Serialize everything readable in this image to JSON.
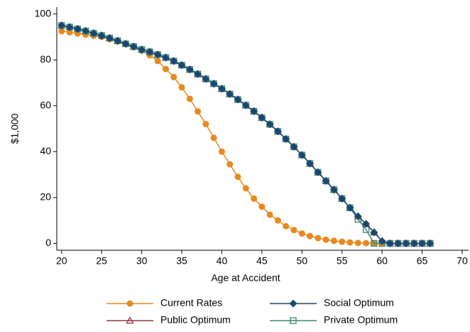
{
  "chart_data": {
    "type": "line",
    "x_label": "Age at Accident",
    "y_label": "$1,000",
    "x": [
      20,
      21,
      22,
      23,
      24,
      25,
      26,
      27,
      28,
      29,
      30,
      31,
      32,
      33,
      34,
      35,
      36,
      37,
      38,
      39,
      40,
      41,
      42,
      43,
      44,
      45,
      46,
      47,
      48,
      49,
      50,
      51,
      52,
      53,
      54,
      55,
      56,
      57,
      58,
      59,
      60,
      61,
      62,
      63,
      64,
      65,
      66
    ],
    "series": [
      {
        "name": "Current Rates",
        "color": "#e8891c",
        "marker": "circle",
        "values": [
          92.5,
          92,
          91.5,
          91,
          90.5,
          90,
          89,
          88,
          87,
          85.5,
          84,
          82,
          79.5,
          76,
          72.5,
          68,
          63,
          57.5,
          52,
          46,
          40,
          34.5,
          29,
          24,
          19.5,
          16,
          12.5,
          10,
          7.5,
          5.8,
          4.3,
          3.2,
          2.3,
          1.6,
          1.1,
          0.7,
          0.4,
          0.2,
          0.1,
          0,
          0,
          0,
          0,
          0,
          0,
          0,
          0
        ]
      },
      {
        "name": "Social Optimum",
        "color": "#1a476f",
        "marker": "diamond",
        "values": [
          95,
          94.3,
          93.5,
          92.6,
          91.6,
          90.6,
          89.5,
          88.3,
          87,
          85.8,
          84.5,
          83.5,
          82.3,
          81,
          79.5,
          77.7,
          75.8,
          73.8,
          71.7,
          69.6,
          67.4,
          65.1,
          62.7,
          60.2,
          57.6,
          54.8,
          51.9,
          48.8,
          45.5,
          42.1,
          38.5,
          34.8,
          31,
          27.2,
          23.4,
          19.5,
          15.5,
          11.8,
          8.5,
          4.8,
          1,
          0,
          0,
          0,
          0,
          0,
          0
        ]
      },
      {
        "name": "Public Optimum",
        "color": "#90353b",
        "marker": "triangle-open",
        "values": [
          95,
          94.3,
          93.5,
          92.6,
          91.6,
          90.6,
          89.5,
          88.3,
          87,
          85.8,
          84.5,
          83.5,
          82.3,
          81,
          79.5,
          77.7,
          75.8,
          73.8,
          71.7,
          69.6,
          67.4,
          65.1,
          62.7,
          60.2,
          57.6,
          54.8,
          51.9,
          48.8,
          45.5,
          42.1,
          38.5,
          34.8,
          31,
          27.2,
          23.4,
          19.5,
          15.5,
          11.8,
          8.5,
          4.8,
          1,
          0,
          0,
          0,
          0,
          0,
          0
        ]
      },
      {
        "name": "Private Optimum",
        "color": "#3c8574",
        "marker": "square-open",
        "values": [
          95,
          94.3,
          93.5,
          92.6,
          91.6,
          90.6,
          89.5,
          88.3,
          87,
          85.8,
          84.5,
          83.5,
          82.3,
          81,
          79.5,
          77.7,
          75.8,
          73.8,
          71.7,
          69.6,
          67.4,
          65.1,
          62.7,
          60.2,
          57.6,
          54.8,
          51.9,
          48.8,
          45.5,
          42.1,
          38.5,
          34.8,
          31,
          27.2,
          23.4,
          19.5,
          15.5,
          10.5,
          6,
          0,
          0,
          0,
          0,
          0,
          0,
          0,
          0
        ]
      }
    ],
    "xlim": [
      19.4,
      70.8
    ],
    "xticks": [
      20,
      25,
      30,
      35,
      40,
      45,
      50,
      55,
      60,
      65,
      70
    ],
    "ylim": [
      -3,
      103
    ],
    "yticks": [
      0,
      20,
      40,
      60,
      80,
      100
    ],
    "legend": "bottom"
  }
}
